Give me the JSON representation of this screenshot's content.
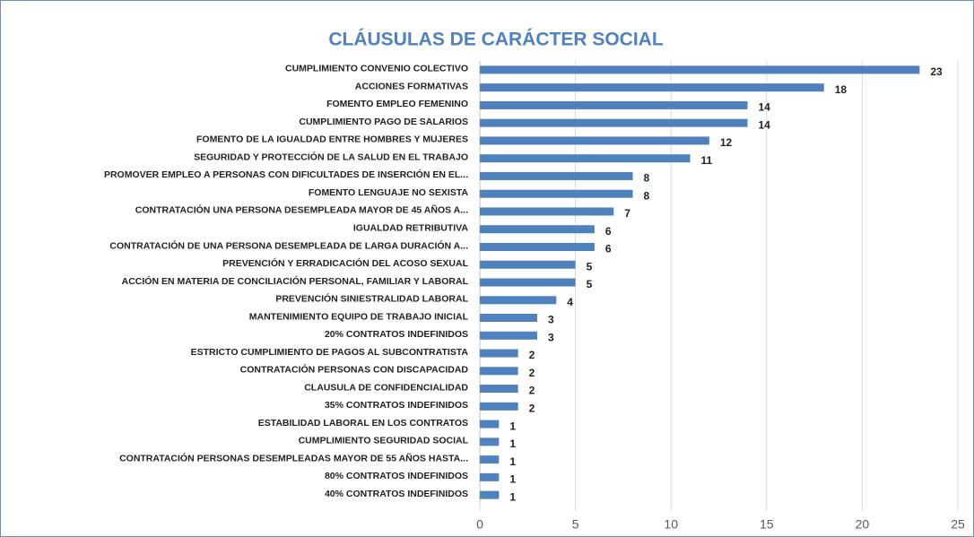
{
  "chart_data": {
    "type": "bar",
    "orientation": "horizontal",
    "title": "CLÁUSULAS DE CARÁCTER SOCIAL",
    "categories": [
      "CUMPLIMIENTO CONVENIO COLECTIVO",
      "ACCIONES FORMATIVAS",
      "FOMENTO EMPLEO FEMENINO",
      "CUMPLIMIENTO PAGO DE SALARIOS",
      "FOMENTO DE LA IGUALDAD ENTRE HOMBRES Y MUJERES",
      "SEGURIDAD Y PROTECCIÓN DE LA SALUD EN EL TRABAJO",
      "PROMOVER EMPLEO A PERSONAS CON DIFICULTADES DE INSERCIÓN EN EL...",
      "FOMENTO LENGUAJE NO SEXISTA",
      "CONTRATACIÓN UNA PERSONA DESEMPLEADA MAYOR DE 45 AÑOS A...",
      "IGUALDAD RETRIBUTIVA",
      "CONTRATACIÓN DE UNA PERSONA DESEMPLEADA DE LARGA DURACIÓN A...",
      "PREVENCIÓN Y ERRADICACIÓN DEL ACOSO SEXUAL",
      "ACCIÓN EN MATERIA DE CONCILIACIÓN PERSONAL, FAMILIAR Y LABORAL",
      "PREVENCIÓN SINIESTRALIDAD LABORAL",
      "MANTENIMIENTO EQUIPO DE TRABAJO INICIAL",
      "20% CONTRATOS INDEFINIDOS",
      "ESTRICTO CUMPLIMIENTO DE PAGOS AL SUBCONTRATISTA",
      "CONTRATACIÓN PERSONAS CON DISCAPACIDAD",
      "CLAUSULA DE CONFIDENCIALIDAD",
      "35% CONTRATOS INDEFINIDOS",
      "ESTABILIDAD LABORAL EN LOS CONTRATOS",
      "CUMPLIMIENTO SEGURIDAD SOCIAL",
      "CONTRATACIÓN PERSONAS DESEMPLEADAS MAYOR DE 55 AÑOS HASTA...",
      "80% CONTRATOS INDEFINIDOS",
      "40% CONTRATOS INDEFINIDOS"
    ],
    "values": [
      23,
      18,
      14,
      14,
      12,
      11,
      8,
      8,
      7,
      6,
      6,
      5,
      5,
      4,
      3,
      3,
      2,
      2,
      2,
      2,
      1,
      1,
      1,
      1,
      1
    ],
    "color": "#4f81bd",
    "xlim": [
      0,
      25
    ],
    "xticks": [
      0,
      5,
      10,
      15,
      20,
      25
    ],
    "grid": true
  }
}
